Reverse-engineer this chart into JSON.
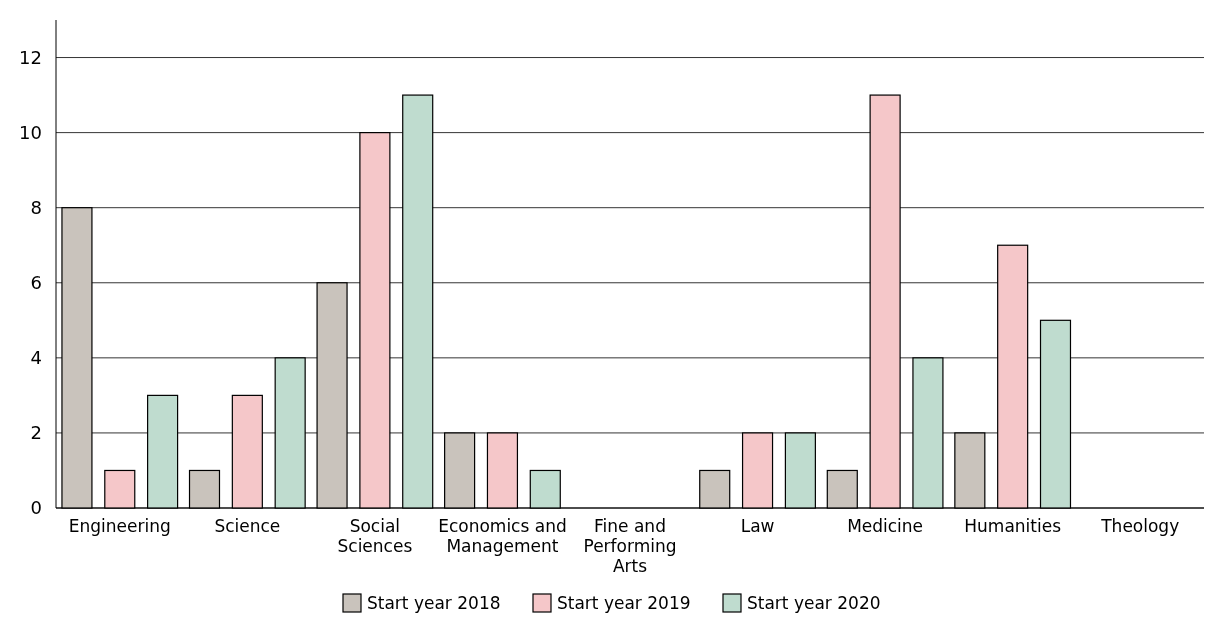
{
  "chart_data": {
    "type": "bar",
    "categories": [
      "Engineering",
      "Science",
      "Social Sciences",
      "Economics and Management",
      "Fine and Performing Arts",
      "Law",
      "Medicine",
      "Humanities",
      "Theology"
    ],
    "series": [
      {
        "name": "Start year 2018",
        "color": "#c9c3bc",
        "values": [
          8,
          1,
          6,
          2,
          0,
          1,
          1,
          2,
          0
        ]
      },
      {
        "name": "Start year 2019",
        "color": "#f5c7c9",
        "values": [
          1,
          3,
          10,
          2,
          0,
          2,
          11,
          7,
          0
        ]
      },
      {
        "name": "Start year 2020",
        "color": "#bfdccf",
        "values": [
          3,
          4,
          11,
          1,
          0,
          2,
          4,
          5,
          0
        ]
      }
    ],
    "ylim": [
      0,
      13
    ],
    "yticks": [
      0,
      2,
      4,
      6,
      8,
      10,
      12
    ],
    "grid": "y",
    "legend": "bottom"
  }
}
